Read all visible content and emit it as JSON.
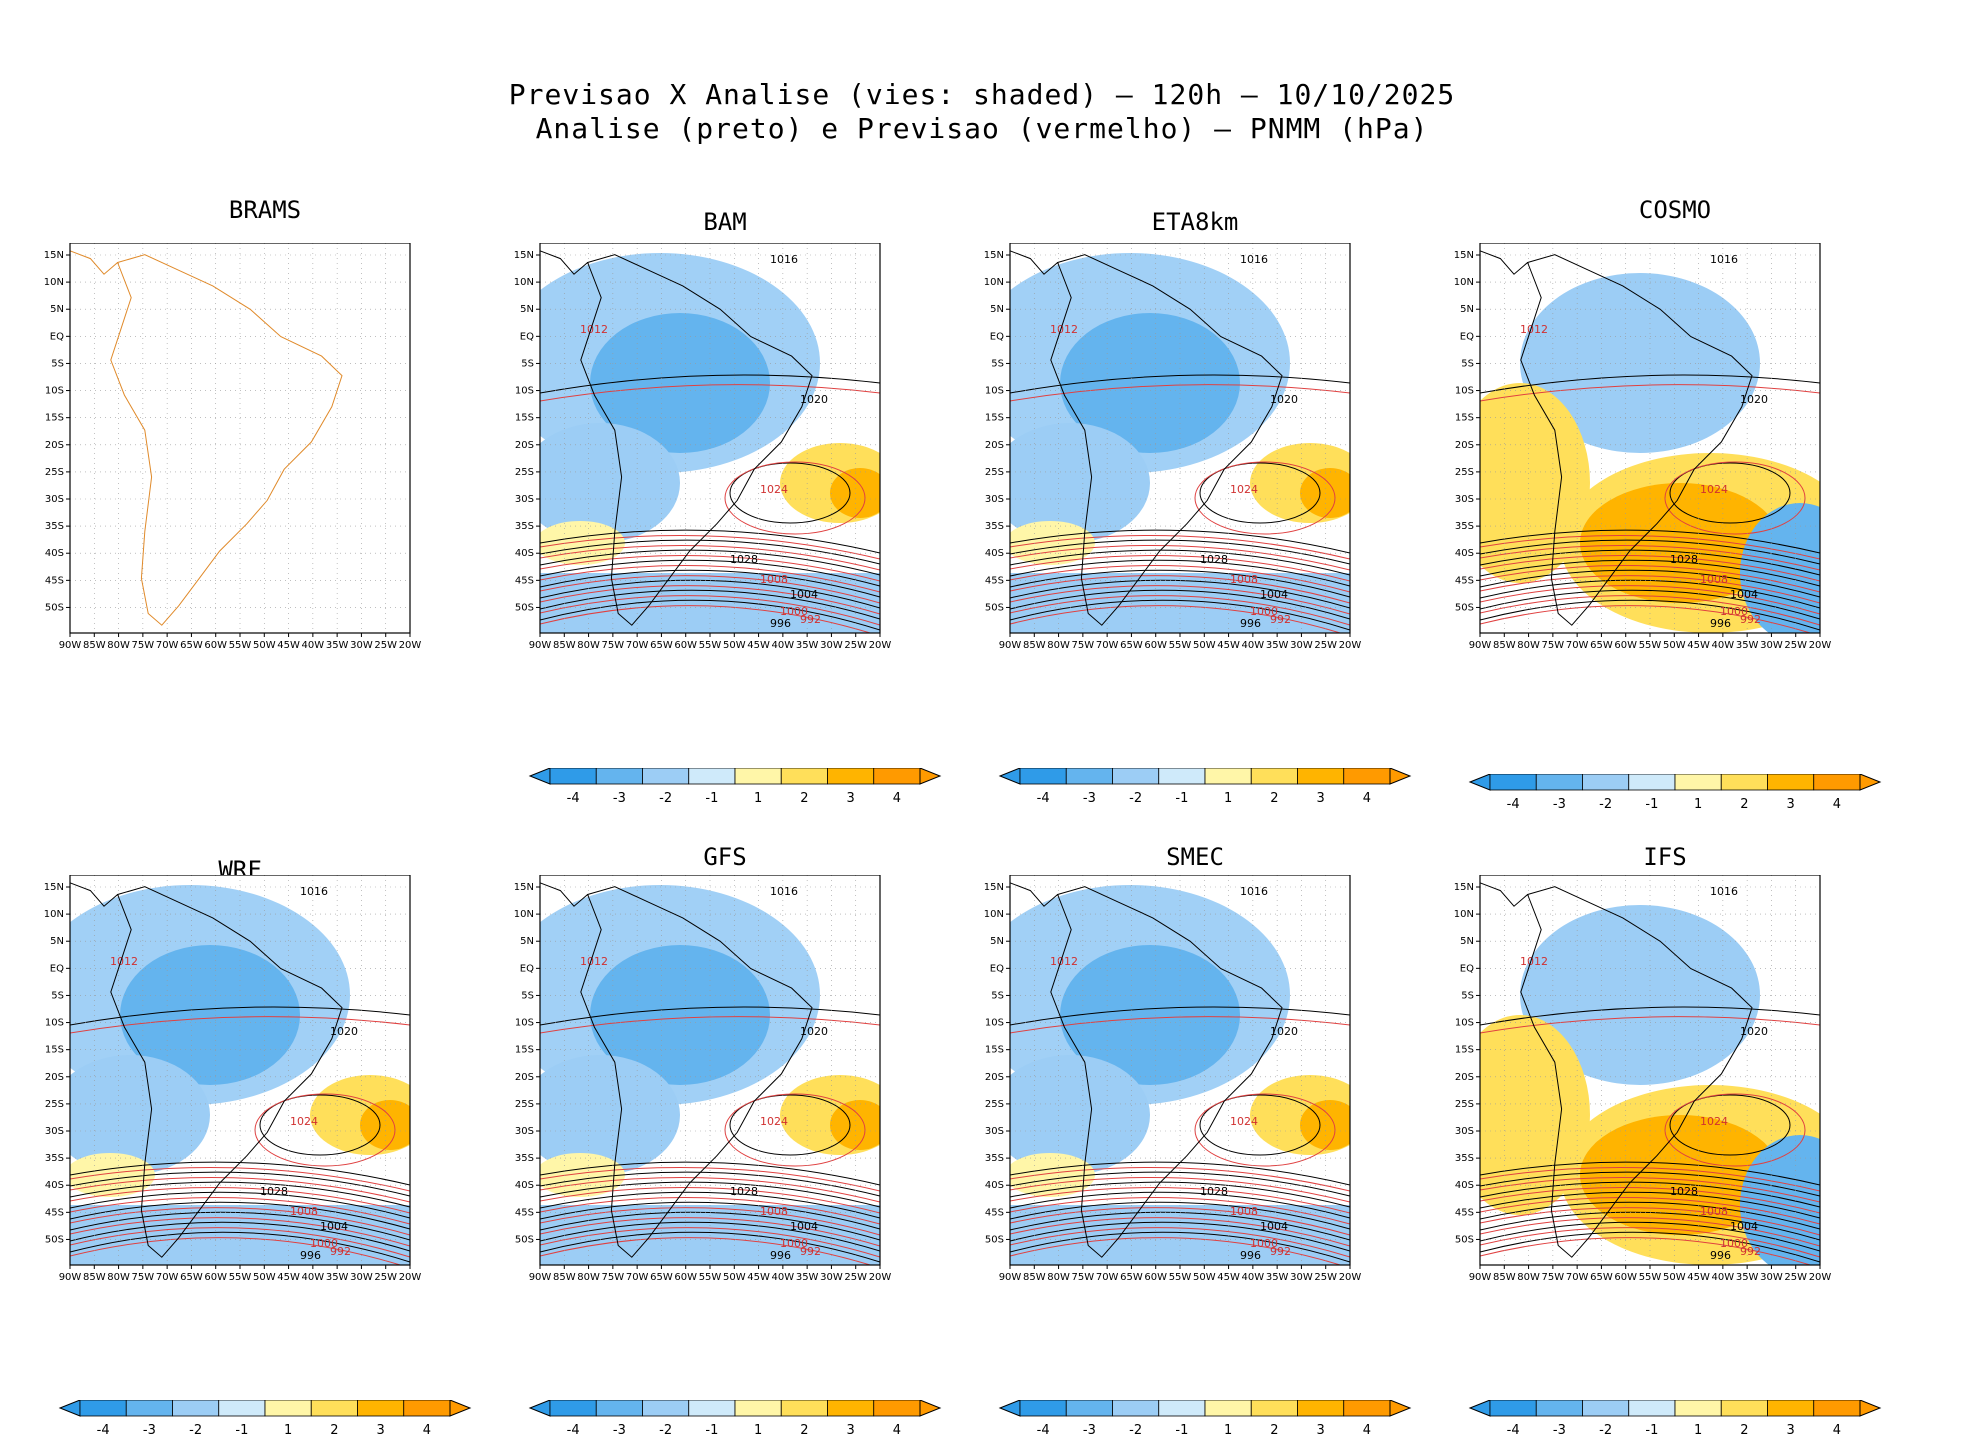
{
  "header": {
    "line1": "Previsao X Analise (vies: shaded) – 120h – 10/10/2025",
    "line2": "Analise (preto) e Previsao (vermelho) – PNMM (hPa)"
  },
  "axes": {
    "lon_labels": [
      "90W",
      "85W",
      "80W",
      "75W",
      "70W",
      "65W",
      "60W",
      "55W",
      "50W",
      "45W",
      "40W",
      "35W",
      "30W",
      "25W",
      "20W"
    ],
    "lat_labels": [
      "15N",
      "10N",
      "5N",
      "EQ",
      "5S",
      "10S",
      "15S",
      "20S",
      "25S",
      "30S",
      "35S",
      "40S",
      "45S",
      "50S"
    ]
  },
  "colorbar": {
    "labels": [
      "-4",
      "-3",
      "-2",
      "-1",
      "1",
      "2",
      "3",
      "4"
    ],
    "colors": [
      "#2f9be8",
      "#64b4ee",
      "#9ccdf5",
      "#cfeafa",
      "#ffffff",
      "#fff6a8",
      "#ffdf5a",
      "#ffb400",
      "#ff9a00"
    ]
  },
  "panels": [
    {
      "name": "BRAMS",
      "has_data": false,
      "has_colorbar": false
    },
    {
      "name": "BAM",
      "has_data": true,
      "has_colorbar": true,
      "bias": "neg",
      "labels": [
        "1016",
        "1012",
        "1020",
        "1024",
        "1028",
        "1008",
        "1004",
        "1000",
        "996",
        "992"
      ]
    },
    {
      "name": "ETA8km",
      "has_data": true,
      "has_colorbar": true,
      "bias": "neg",
      "labels": [
        "1016",
        "1012",
        "1020",
        "1024",
        "1028",
        "1008",
        "1004",
        "1000",
        "996",
        "992"
      ]
    },
    {
      "name": "COSMO",
      "has_data": true,
      "has_colorbar": true,
      "bias": "pos",
      "labels": [
        "1016",
        "1012",
        "1020",
        "1024",
        "1028",
        "1008",
        "1004",
        "1000",
        "996",
        "992"
      ]
    },
    {
      "name": "WRF",
      "has_data": true,
      "has_colorbar": true,
      "bias": "neg",
      "labels": [
        "1016",
        "1012",
        "1020",
        "1024",
        "1028",
        "1008",
        "1004",
        "1000",
        "996",
        "992"
      ]
    },
    {
      "name": "GFS",
      "has_data": true,
      "has_colorbar": true,
      "bias": "neg",
      "labels": [
        "1016",
        "1012",
        "1020",
        "1024",
        "1028",
        "1008",
        "1004",
        "1000",
        "996",
        "992"
      ]
    },
    {
      "name": "SMEC",
      "has_data": true,
      "has_colorbar": true,
      "bias": "neg",
      "labels": [
        "1016",
        "1012",
        "1020",
        "1024",
        "1028",
        "1008",
        "1004",
        "1000",
        "996",
        "992"
      ]
    },
    {
      "name": "IFS",
      "has_data": true,
      "has_colorbar": true,
      "bias": "pos",
      "labels": [
        "1016",
        "1012",
        "1020",
        "1024",
        "1028",
        "1008",
        "1004",
        "1000",
        "996",
        "992"
      ]
    }
  ]
}
